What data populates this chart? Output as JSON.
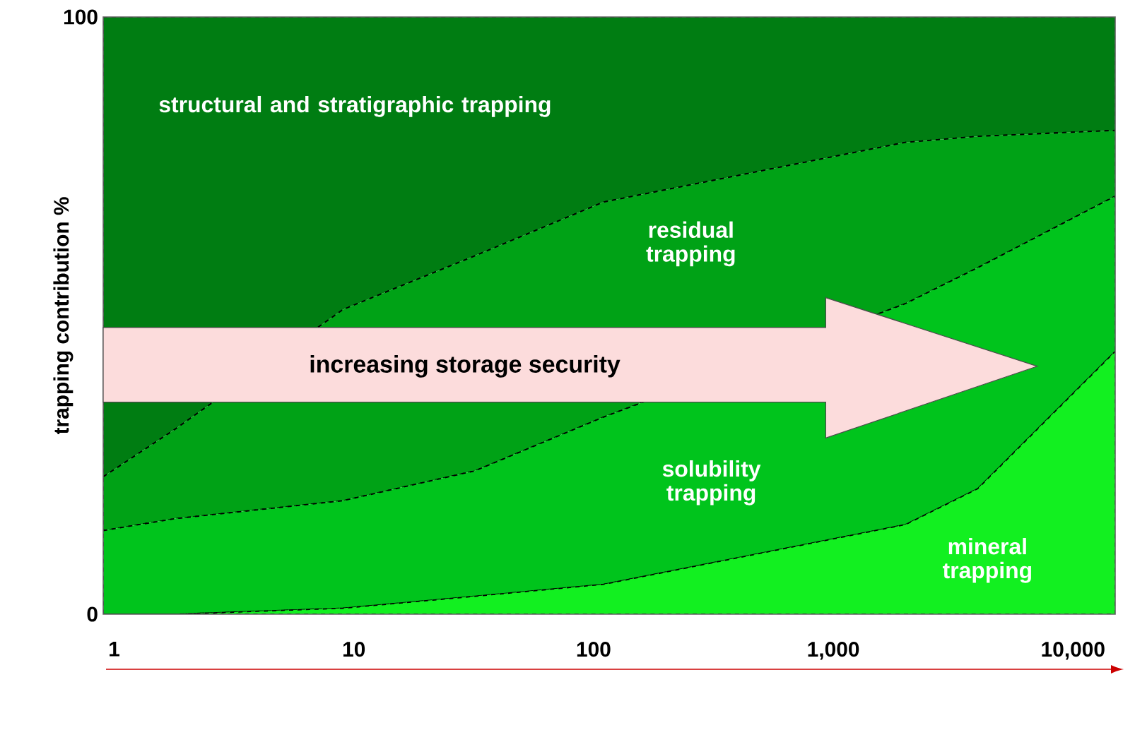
{
  "chart_data": {
    "type": "area",
    "stacked": true,
    "log": "x",
    "ylabel": "trapping contribution %",
    "x": [
      0.9,
      1.8,
      9,
      32,
      110,
      2000,
      4000,
      15000
    ],
    "xlim": [
      0.9,
      15000
    ],
    "ylim": [
      0,
      100
    ],
    "xticks": [
      1,
      10,
      100,
      {
        "value": 1000,
        "label": "1,000"
      },
      {
        "value": 10000,
        "label": "10,000"
      }
    ],
    "yticks": [
      0,
      100
    ],
    "line_style": "dashed",
    "series": [
      {
        "name": "mineral trapping",
        "color": "#12f020",
        "values": [
          0,
          0,
          1,
          3,
          5,
          15,
          21,
          44
        ]
      },
      {
        "name": "solubility trapping",
        "color": "#00c41c",
        "values": [
          14,
          16,
          18,
          21,
          28,
          37,
          37,
          26
        ]
      },
      {
        "name": "residual trapping",
        "color": "#00a216",
        "values": [
          9,
          15,
          32,
          36,
          36,
          27,
          22,
          11
        ]
      },
      {
        "name": "structural and stratigraphic trapping",
        "color": "#007d12",
        "values": [
          77,
          69,
          49,
          40,
          31,
          21,
          20,
          19
        ]
      }
    ],
    "annotations": [
      "increasing storage security"
    ]
  }
}
